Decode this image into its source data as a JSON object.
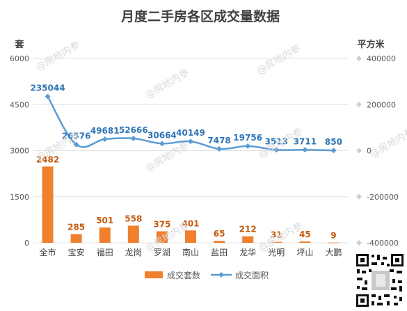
{
  "chart_data": {
    "type": "bar+line",
    "title": "月度二手房各区成交量数据",
    "y_left_unit": "套",
    "y_right_unit": "平方米",
    "y_left_range": [
      0,
      6000
    ],
    "y_left_ticks": [
      "0",
      "1500",
      "3000",
      "4500",
      "6000"
    ],
    "y_right_range": [
      -400000,
      400000
    ],
    "y_right_ticks": [
      "-400000",
      "-200000",
      "0",
      "200000",
      "400000"
    ],
    "categories": [
      "全市",
      "宝安",
      "福田",
      "龙岗",
      "罗湖",
      "南山",
      "盐田",
      "龙华",
      "光明",
      "坪山",
      "大鹏"
    ],
    "series": [
      {
        "name": "成交套数",
        "type": "bar",
        "axis": "left",
        "color": "#f07f2e",
        "values": [
          2482,
          285,
          501,
          558,
          375,
          401,
          65,
          212,
          31,
          45,
          9
        ]
      },
      {
        "name": "成交面积",
        "type": "line",
        "axis": "right",
        "color": "#5b9bd5",
        "values": [
          235044,
          26576,
          49681,
          52666,
          30664,
          40149,
          7478,
          19756,
          3513,
          3711,
          850
        ]
      }
    ],
    "legend_position": "bottom",
    "grid": true
  },
  "watermark_text": "@房地内参"
}
